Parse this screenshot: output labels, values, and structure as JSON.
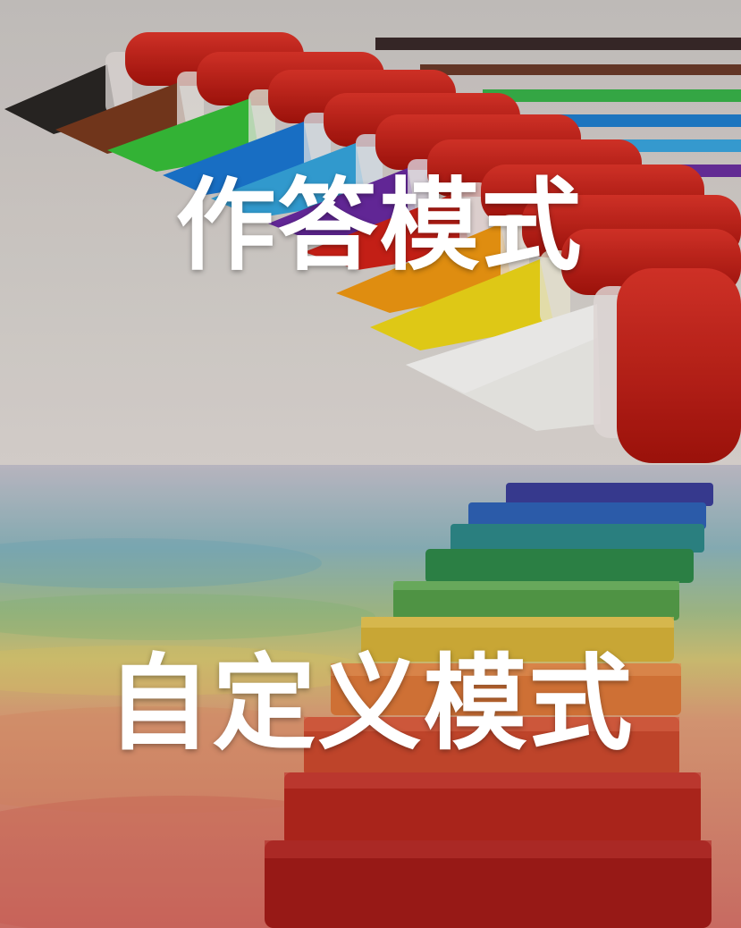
{
  "modes": {
    "answer": {
      "label": "作答模式",
      "background_icon": "marker-pens-image"
    },
    "custom": {
      "label": "自定义模式",
      "background_icon": "chalk-pastels-image"
    }
  },
  "colors": {
    "label_text": "#ffffff",
    "answer_background": "#d8d4cf",
    "custom_background": "#d9cfc6",
    "marker_cap_red": "#c41b14"
  }
}
